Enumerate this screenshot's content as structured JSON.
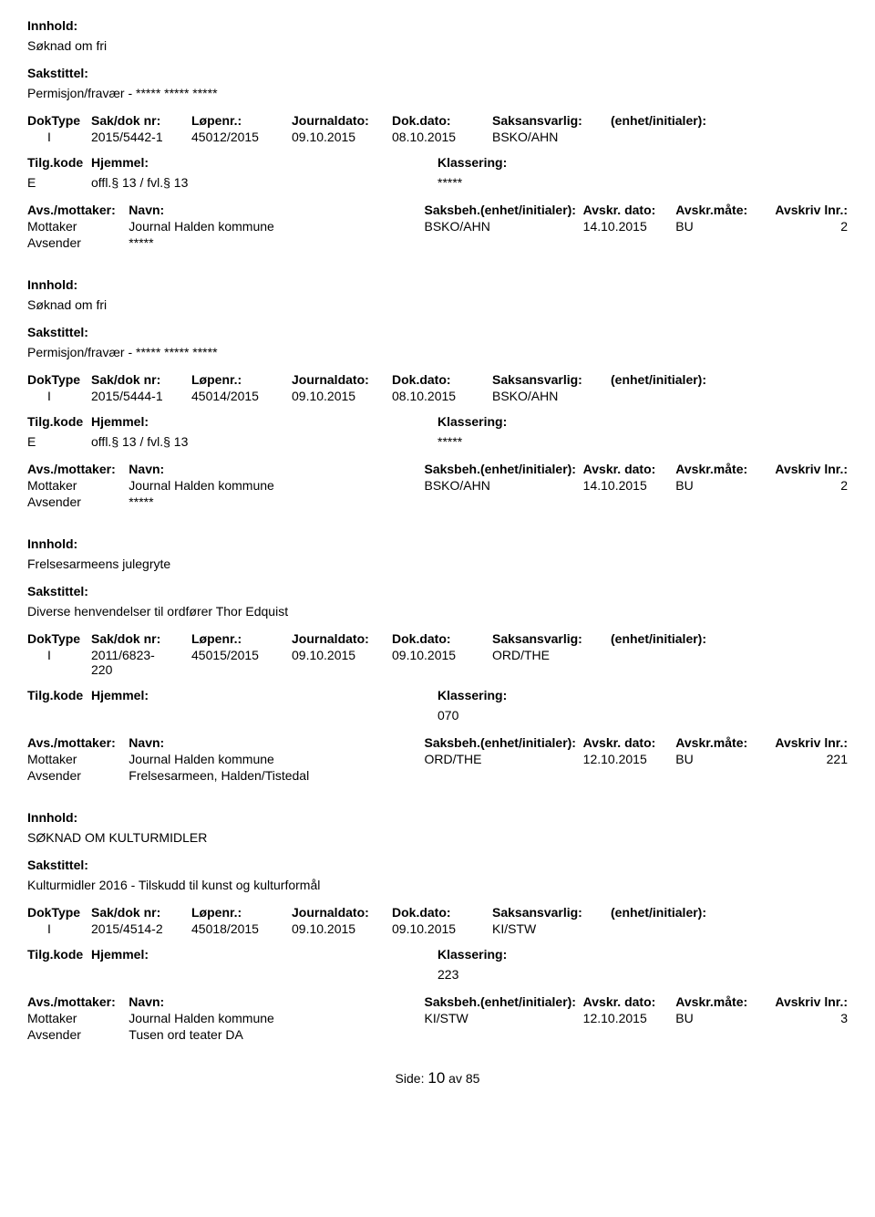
{
  "labels": {
    "innhold": "Innhold:",
    "sakstittel": "Sakstittel:",
    "doktype": "DokType",
    "saknr": "Sak/dok nr:",
    "lopenr": "Løpenr.:",
    "journaldato": "Journaldato:",
    "dokdato": "Dok.dato:",
    "saksansvarlig": "Saksansvarlig:",
    "enhet": "(enhet/initialer):",
    "tilgkode": "Tilg.kode",
    "hjemmel": "Hjemmel:",
    "klassering": "Klassering:",
    "avsmottaker": "Avs./mottaker:",
    "navn": "Navn:",
    "saksbeh": "Saksbeh.(enhet/initialer):",
    "avskrdato": "Avskr. dato:",
    "avskrmate": "Avskr.måte:",
    "avskrlnr": "Avskriv lnr.:"
  },
  "entries": [
    {
      "innhold": "Søknad om fri",
      "sakstittel": "Permisjon/fravær - ***** ***** *****",
      "doktype": "I",
      "saknr": "2015/5442-1",
      "lopenr": "45012/2015",
      "journaldato": "09.10.2015",
      "dokdato": "08.10.2015",
      "saksansvarlig": "BSKO/AHN",
      "enhet": "",
      "tilgkode": "E",
      "hjemmel": "offl.§ 13 / fvl.§ 13",
      "klassering": "*****",
      "parts": [
        {
          "role": "Mottaker",
          "navn": "Journal Halden kommune",
          "saksbeh": "BSKO/AHN",
          "avskrdato": "14.10.2015",
          "avskrmate": "BU",
          "avskrlnr": "2"
        },
        {
          "role": "Avsender",
          "navn": "*****",
          "saksbeh": "",
          "avskrdato": "",
          "avskrmate": "",
          "avskrlnr": ""
        }
      ]
    },
    {
      "innhold": "Søknad om fri",
      "sakstittel": "Permisjon/fravær - ***** ***** *****",
      "doktype": "I",
      "saknr": "2015/5444-1",
      "lopenr": "45014/2015",
      "journaldato": "09.10.2015",
      "dokdato": "08.10.2015",
      "saksansvarlig": "BSKO/AHN",
      "enhet": "",
      "tilgkode": "E",
      "hjemmel": "offl.§ 13 / fvl.§ 13",
      "klassering": "*****",
      "parts": [
        {
          "role": "Mottaker",
          "navn": "Journal Halden kommune",
          "saksbeh": "BSKO/AHN",
          "avskrdato": "14.10.2015",
          "avskrmate": "BU",
          "avskrlnr": "2"
        },
        {
          "role": "Avsender",
          "navn": "*****",
          "saksbeh": "",
          "avskrdato": "",
          "avskrmate": "",
          "avskrlnr": ""
        }
      ]
    },
    {
      "innhold": "Frelsesarmeens julegryte",
      "sakstittel": "Diverse henvendelser til ordfører Thor Edquist",
      "doktype": "I",
      "saknr": "2011/6823-220",
      "lopenr": "45015/2015",
      "journaldato": "09.10.2015",
      "dokdato": "09.10.2015",
      "saksansvarlig": "ORD/THE",
      "enhet": "",
      "tilgkode": "",
      "hjemmel": "",
      "klassering": "070",
      "parts": [
        {
          "role": "Mottaker",
          "navn": "Journal Halden kommune",
          "saksbeh": "ORD/THE",
          "avskrdato": "12.10.2015",
          "avskrmate": "BU",
          "avskrlnr": "221"
        },
        {
          "role": "Avsender",
          "navn": "Frelsesarmeen, Halden/Tistedal",
          "saksbeh": "",
          "avskrdato": "",
          "avskrmate": "",
          "avskrlnr": ""
        }
      ]
    },
    {
      "innhold": "SØKNAD OM KULTURMIDLER",
      "sakstittel": "Kulturmidler 2016 - Tilskudd til kunst og kulturformål",
      "doktype": "I",
      "saknr": "2015/4514-2",
      "lopenr": "45018/2015",
      "journaldato": "09.10.2015",
      "dokdato": "09.10.2015",
      "saksansvarlig": "KI/STW",
      "enhet": "",
      "tilgkode": "",
      "hjemmel": "",
      "klassering": "223",
      "parts": [
        {
          "role": "Mottaker",
          "navn": "Journal Halden kommune",
          "saksbeh": "KI/STW",
          "avskrdato": "12.10.2015",
          "avskrmate": "BU",
          "avskrlnr": "3"
        },
        {
          "role": "Avsender",
          "navn": "Tusen ord teater DA",
          "saksbeh": "",
          "avskrdato": "",
          "avskrmate": "",
          "avskrlnr": ""
        }
      ]
    }
  ],
  "footer": {
    "side_label": "Side:",
    "page_current": "10",
    "av": "av",
    "page_total": "85"
  }
}
